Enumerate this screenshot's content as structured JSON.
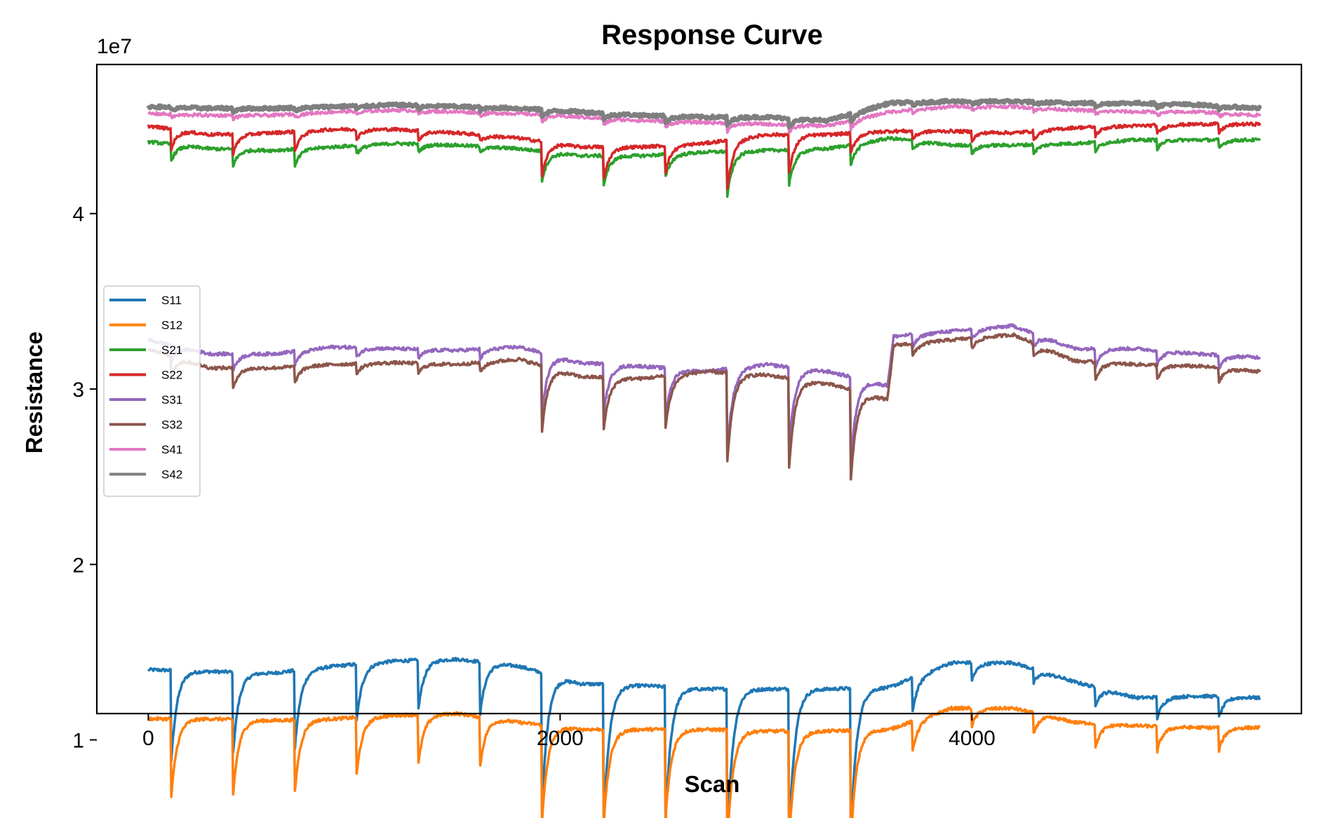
{
  "chart_data": {
    "type": "line",
    "title": "Response Curve",
    "xlabel": "Scan",
    "ylabel": "Resistance",
    "y_offset_label": "1e7",
    "xlim": [
      -250,
      5600
    ],
    "ylim": [
      1.15,
      4.85
    ],
    "x_ticks": [
      0,
      2000,
      4000
    ],
    "x_tick_labels": [
      "0",
      "2000",
      "4000"
    ],
    "y_ticks": [
      1,
      2,
      3,
      4
    ],
    "y_tick_labels": [
      "1",
      "2",
      "3",
      "4"
    ],
    "legend_position": "center-left",
    "grid": false,
    "x_end": 5400,
    "events": [
      {
        "x": 110,
        "tag": "a"
      },
      {
        "x": 410,
        "tag": "a"
      },
      {
        "x": 710,
        "tag": "a"
      },
      {
        "x": 1010,
        "tag": "a"
      },
      {
        "x": 1310,
        "tag": "a"
      },
      {
        "x": 1610,
        "tag": "a"
      },
      {
        "x": 1910,
        "tag": "b"
      },
      {
        "x": 2210,
        "tag": "b"
      },
      {
        "x": 2510,
        "tag": "b"
      },
      {
        "x": 2810,
        "tag": "b"
      },
      {
        "x": 3110,
        "tag": "b"
      },
      {
        "x": 3410,
        "tag": "b"
      },
      {
        "x": 3710,
        "tag": "c"
      },
      {
        "x": 4000,
        "tag": "c"
      },
      {
        "x": 4300,
        "tag": "c"
      },
      {
        "x": 4600,
        "tag": "c"
      },
      {
        "x": 4900,
        "tag": "c"
      },
      {
        "x": 5200,
        "tag": "c"
      }
    ],
    "series": [
      {
        "name": "S11",
        "color": "#1f77b4",
        "width": 3.5,
        "x": [
          0,
          300,
          600,
          900,
          1200,
          1500,
          1800,
          2100,
          2400,
          2700,
          3000,
          3300,
          3600,
          3900,
          4200,
          4500,
          4800,
          5100,
          5400
        ],
        "baseline": [
          1.4,
          1.39,
          1.38,
          1.42,
          1.45,
          1.46,
          1.42,
          1.32,
          1.31,
          1.29,
          1.29,
          1.29,
          1.3,
          1.44,
          1.44,
          1.33,
          1.24,
          1.25,
          1.24
        ],
        "dips": [
          0.55,
          0.5,
          0.48,
          0.35,
          0.3,
          0.32,
          0.85,
          0.85,
          0.82,
          0.93,
          0.92,
          0.92,
          0.2,
          0.1,
          0.08,
          0.1,
          0.12,
          0.12
        ]
      },
      {
        "name": "S12",
        "color": "#ff7f0e",
        "width": 3.5,
        "x": [
          0,
          300,
          600,
          900,
          1200,
          1500,
          1800,
          2100,
          2400,
          2700,
          3000,
          3300,
          3600,
          3900,
          4200,
          4500,
          4800,
          5100,
          5400
        ],
        "baseline": [
          1.12,
          1.12,
          1.11,
          1.12,
          1.14,
          1.15,
          1.1,
          1.06,
          1.06,
          1.06,
          1.05,
          1.05,
          1.06,
          1.18,
          1.18,
          1.1,
          1.08,
          1.07,
          1.07
        ],
        "dips": [
          0.48,
          0.46,
          0.44,
          0.35,
          0.3,
          0.3,
          0.6,
          0.58,
          0.55,
          0.7,
          0.68,
          0.68,
          0.18,
          0.1,
          0.12,
          0.14,
          0.14,
          0.13
        ]
      },
      {
        "name": "S21",
        "color": "#2ca02c",
        "width": 3.5,
        "x": [
          0,
          300,
          600,
          900,
          1200,
          1500,
          1800,
          2100,
          2400,
          2700,
          3000,
          3300,
          3600,
          3900,
          4200,
          4500,
          4800,
          5100,
          5400
        ],
        "baseline": [
          4.41,
          4.37,
          4.36,
          4.38,
          4.4,
          4.39,
          4.37,
          4.33,
          4.33,
          4.35,
          4.36,
          4.37,
          4.43,
          4.39,
          4.39,
          4.4,
          4.42,
          4.42,
          4.42
        ],
        "dips": [
          0.1,
          0.1,
          0.1,
          0.05,
          0.05,
          0.03,
          0.18,
          0.18,
          0.14,
          0.27,
          0.22,
          0.12,
          0.05,
          0.05,
          0.05,
          0.05,
          0.05,
          0.05
        ]
      },
      {
        "name": "S22",
        "color": "#d62728",
        "width": 3.5,
        "x": [
          0,
          300,
          600,
          900,
          1200,
          1500,
          1800,
          2100,
          2400,
          2700,
          3000,
          3300,
          3600,
          3900,
          4200,
          4500,
          4800,
          5100,
          5400
        ],
        "baseline": [
          4.5,
          4.45,
          4.46,
          4.48,
          4.48,
          4.46,
          4.43,
          4.38,
          4.38,
          4.4,
          4.45,
          4.45,
          4.47,
          4.47,
          4.46,
          4.49,
          4.5,
          4.51,
          4.51
        ],
        "dips": [
          0.12,
          0.12,
          0.12,
          0.06,
          0.06,
          0.04,
          0.22,
          0.2,
          0.16,
          0.3,
          0.24,
          0.12,
          0.05,
          0.05,
          0.05,
          0.05,
          0.05,
          0.05
        ]
      },
      {
        "name": "S31",
        "color": "#9467bd",
        "width": 3.5,
        "x": [
          0,
          300,
          600,
          900,
          1200,
          1500,
          1800,
          2100,
          2400,
          2700,
          3000,
          3300,
          3590,
          3620,
          3900,
          4200,
          4500,
          4800,
          5100,
          5400
        ],
        "baseline": [
          3.28,
          3.2,
          3.2,
          3.24,
          3.23,
          3.22,
          3.24,
          3.15,
          3.13,
          3.1,
          3.14,
          3.1,
          3.02,
          3.3,
          3.33,
          3.36,
          3.23,
          3.23,
          3.2,
          3.18
        ],
        "dips": [
          0.1,
          0.1,
          0.08,
          0.06,
          0.06,
          0.06,
          0.38,
          0.3,
          0.3,
          0.5,
          0.5,
          0.52,
          0.08,
          0.06,
          0.08,
          0.1,
          0.08,
          0.08
        ]
      },
      {
        "name": "S32",
        "color": "#8c564b",
        "width": 3.5,
        "x": [
          0,
          300,
          600,
          900,
          1200,
          1500,
          1800,
          2100,
          2400,
          2700,
          3000,
          3300,
          3590,
          3620,
          3900,
          4200,
          4500,
          4800,
          5100,
          5400
        ],
        "baseline": [
          3.23,
          3.12,
          3.12,
          3.14,
          3.15,
          3.14,
          3.17,
          3.07,
          3.06,
          3.1,
          3.08,
          3.03,
          2.94,
          3.25,
          3.28,
          3.31,
          3.16,
          3.14,
          3.13,
          3.1
        ],
        "dips": [
          0.12,
          0.12,
          0.1,
          0.06,
          0.06,
          0.06,
          0.4,
          0.32,
          0.32,
          0.55,
          0.55,
          0.55,
          0.08,
          0.06,
          0.08,
          0.1,
          0.08,
          0.08
        ]
      },
      {
        "name": "S41",
        "color": "#e377c2",
        "width": 3.5,
        "x": [
          0,
          300,
          600,
          900,
          1200,
          1500,
          1800,
          2100,
          2400,
          2700,
          3000,
          3300,
          3600,
          3900,
          4200,
          4500,
          4800,
          5100,
          5400
        ],
        "baseline": [
          4.57,
          4.56,
          4.56,
          4.58,
          4.59,
          4.58,
          4.57,
          4.55,
          4.53,
          4.52,
          4.51,
          4.5,
          4.58,
          4.61,
          4.61,
          4.59,
          4.58,
          4.58,
          4.56
        ],
        "dips": [
          0.02,
          0.02,
          0.02,
          0.02,
          0.02,
          0.02,
          0.04,
          0.04,
          0.04,
          0.05,
          0.05,
          0.05,
          0.02,
          0.02,
          0.02,
          0.02,
          0.02,
          0.02
        ]
      },
      {
        "name": "S42",
        "color": "#7f7f7f",
        "width": 6,
        "x": [
          0,
          300,
          600,
          900,
          1200,
          1500,
          1800,
          2100,
          2400,
          2700,
          3000,
          3300,
          3600,
          3900,
          4200,
          4500,
          4800,
          5100,
          5400
        ],
        "baseline": [
          4.61,
          4.6,
          4.6,
          4.61,
          4.62,
          4.61,
          4.6,
          4.58,
          4.56,
          4.55,
          4.55,
          4.53,
          4.63,
          4.64,
          4.64,
          4.63,
          4.63,
          4.62,
          4.6
        ],
        "dips": [
          0.02,
          0.02,
          0.02,
          0.02,
          0.02,
          0.02,
          0.04,
          0.04,
          0.04,
          0.05,
          0.05,
          0.05,
          0.02,
          0.02,
          0.02,
          0.02,
          0.02,
          0.02
        ]
      }
    ]
  }
}
